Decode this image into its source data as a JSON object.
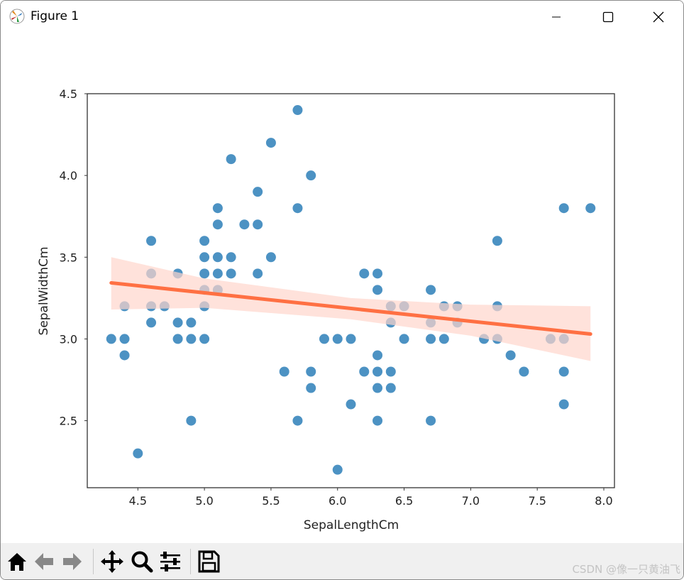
{
  "window": {
    "title": "Figure 1",
    "icons": [
      "matplotlib-logo-icon",
      "minimize-icon",
      "maximize-icon",
      "close-icon"
    ]
  },
  "toolbar": {
    "buttons": [
      "home-icon",
      "back-icon",
      "forward-icon",
      "pan-icon",
      "zoom-icon",
      "configure-subplots-icon",
      "save-icon"
    ]
  },
  "watermark": "CSDN @像一只黄油飞",
  "colors": {
    "points": "#1f77b4",
    "line": "#ff7043",
    "band": "#ffd6cc"
  },
  "chart_data": {
    "type": "scatter",
    "xlabel": "SepalLengthCm",
    "ylabel": "SepalWidthCm",
    "xlim": [
      4.12,
      8.08
    ],
    "ylim": [
      2.09,
      4.5
    ],
    "xticks": [
      "4.5",
      "5.0",
      "5.5",
      "6.0",
      "6.5",
      "7.0",
      "7.5",
      "8.0"
    ],
    "yticks": [
      "2.5",
      "3.0",
      "3.5",
      "4.0",
      "4.5"
    ],
    "grid": false,
    "points": [
      [
        4.3,
        3.0
      ],
      [
        4.4,
        3.0
      ],
      [
        4.4,
        3.2
      ],
      [
        4.4,
        2.9
      ],
      [
        4.5,
        2.3
      ],
      [
        4.6,
        3.6
      ],
      [
        4.6,
        3.4
      ],
      [
        4.6,
        3.2
      ],
      [
        4.6,
        3.1
      ],
      [
        4.7,
        3.2
      ],
      [
        4.8,
        3.4
      ],
      [
        4.8,
        3.1
      ],
      [
        4.8,
        3.0
      ],
      [
        4.9,
        3.1
      ],
      [
        4.9,
        3.0
      ],
      [
        4.9,
        2.5
      ],
      [
        5.0,
        3.6
      ],
      [
        5.0,
        3.5
      ],
      [
        5.0,
        3.4
      ],
      [
        5.0,
        3.3
      ],
      [
        5.0,
        3.2
      ],
      [
        5.0,
        3.0
      ],
      [
        5.1,
        3.8
      ],
      [
        5.1,
        3.7
      ],
      [
        5.1,
        3.5
      ],
      [
        5.1,
        3.4
      ],
      [
        5.1,
        3.3
      ],
      [
        5.2,
        4.1
      ],
      [
        5.2,
        3.5
      ],
      [
        5.2,
        3.4
      ],
      [
        5.3,
        3.7
      ],
      [
        5.4,
        3.9
      ],
      [
        5.4,
        3.7
      ],
      [
        5.4,
        3.4
      ],
      [
        5.5,
        4.2
      ],
      [
        5.5,
        3.5
      ],
      [
        5.6,
        2.8
      ],
      [
        5.7,
        4.4
      ],
      [
        5.7,
        3.8
      ],
      [
        5.7,
        2.5
      ],
      [
        5.8,
        4.0
      ],
      [
        5.8,
        2.8
      ],
      [
        5.8,
        2.7
      ],
      [
        5.9,
        3.0
      ],
      [
        6.0,
        3.0
      ],
      [
        6.0,
        2.2
      ],
      [
        6.1,
        3.0
      ],
      [
        6.1,
        2.6
      ],
      [
        6.2,
        3.4
      ],
      [
        6.2,
        2.8
      ],
      [
        6.3,
        3.4
      ],
      [
        6.3,
        3.3
      ],
      [
        6.3,
        2.9
      ],
      [
        6.3,
        2.8
      ],
      [
        6.3,
        2.7
      ],
      [
        6.3,
        2.5
      ],
      [
        6.4,
        3.2
      ],
      [
        6.4,
        3.1
      ],
      [
        6.4,
        2.8
      ],
      [
        6.4,
        2.7
      ],
      [
        6.5,
        3.2
      ],
      [
        6.5,
        3.0
      ],
      [
        6.7,
        3.3
      ],
      [
        6.7,
        3.1
      ],
      [
        6.7,
        3.0
      ],
      [
        6.7,
        2.5
      ],
      [
        6.8,
        3.2
      ],
      [
        6.8,
        3.0
      ],
      [
        6.9,
        3.2
      ],
      [
        6.9,
        3.1
      ],
      [
        7.1,
        3.0
      ],
      [
        7.2,
        3.6
      ],
      [
        7.2,
        3.2
      ],
      [
        7.2,
        3.0
      ],
      [
        7.3,
        2.9
      ],
      [
        7.4,
        2.8
      ],
      [
        7.6,
        3.0
      ],
      [
        7.7,
        3.8
      ],
      [
        7.7,
        3.0
      ],
      [
        7.7,
        2.8
      ],
      [
        7.7,
        2.6
      ],
      [
        7.9,
        3.8
      ]
    ],
    "regression": {
      "x": [
        4.3,
        7.9
      ],
      "y": [
        3.343,
        3.03
      ]
    },
    "confidence_band": {
      "x": [
        4.3,
        5.0,
        6.1,
        7.0,
        7.9
      ],
      "lower": [
        3.18,
        3.19,
        3.12,
        3.02,
        2.865
      ],
      "upper": [
        3.5,
        3.37,
        3.25,
        3.21,
        3.2
      ]
    }
  }
}
